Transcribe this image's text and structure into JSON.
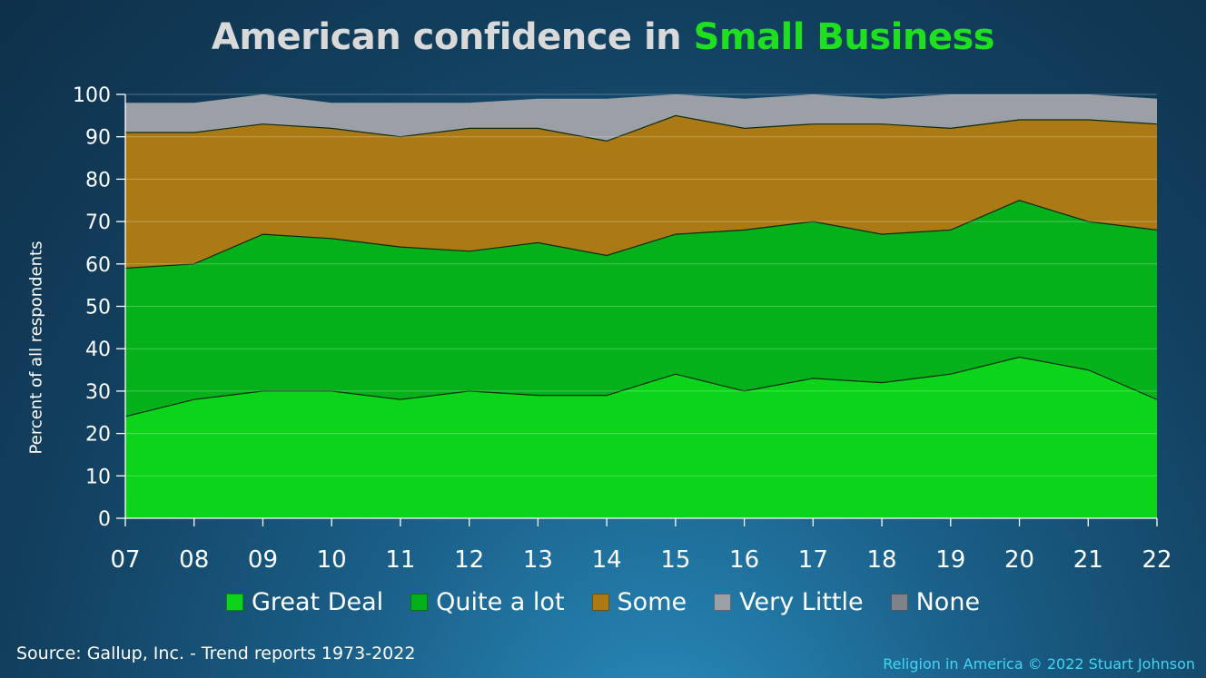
{
  "header": {
    "title_prefix": "American confidence in ",
    "title_highlight": "Small Business"
  },
  "footer": {
    "source": "Source: Gallup, Inc. - Trend reports 1973-2022",
    "credit": "Religion in America © 2022 Stuart Johnson"
  },
  "colors": {
    "great_deal": "#0bd41b",
    "quite_a_lot": "#05b11a",
    "some": "#ab7a14",
    "very_little": "#9aa0a6",
    "none": "#7d8388",
    "title_highlight": "#1ee01e"
  },
  "chart_data": {
    "type": "area",
    "stacked": true,
    "title": "American confidence in Small Business",
    "ylabel": "Percent of all respondents",
    "xlabel": "",
    "ylim": [
      0,
      100
    ],
    "yticks": [
      0,
      10,
      20,
      30,
      40,
      50,
      60,
      70,
      80,
      90,
      100
    ],
    "grid": true,
    "legend_position": "bottom",
    "x": [
      "07",
      "08",
      "09",
      "10",
      "11",
      "12",
      "13",
      "14",
      "15",
      "16",
      "17",
      "18",
      "19",
      "20",
      "21",
      "22"
    ],
    "series": [
      {
        "name": "Great Deal",
        "color": "#0bd41b",
        "values": [
          24,
          28,
          30,
          30,
          28,
          30,
          29,
          29,
          34,
          30,
          33,
          32,
          34,
          38,
          35,
          28
        ]
      },
      {
        "name": "Quite a lot",
        "color": "#05b11a",
        "values": [
          35,
          32,
          37,
          36,
          36,
          33,
          36,
          33,
          33,
          38,
          37,
          35,
          34,
          37,
          35,
          40
        ]
      },
      {
        "name": "Some",
        "color": "#ab7a14",
        "values": [
          32,
          31,
          26,
          26,
          26,
          29,
          27,
          27,
          28,
          24,
          23,
          26,
          24,
          19,
          24,
          25
        ]
      },
      {
        "name": "Very Little",
        "color": "#9aa0a6",
        "values": [
          7,
          7,
          7,
          6,
          8,
          6,
          7,
          10,
          5,
          7,
          7,
          6,
          8,
          6,
          6,
          6
        ]
      },
      {
        "name": "None",
        "color": "#7d8388",
        "values": [
          0,
          0,
          0,
          0,
          0,
          0,
          0,
          0,
          0,
          0,
          0,
          0,
          0,
          0,
          0,
          0
        ]
      }
    ]
  }
}
